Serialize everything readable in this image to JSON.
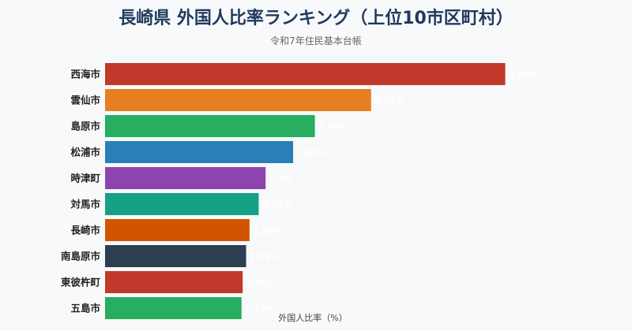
{
  "chart_data": {
    "type": "bar",
    "orientation": "horizontal",
    "title": "長崎県 外国人比率ランキング（上位10市区町村）",
    "subtitle": "令和7年住民基本台帳",
    "xlabel": "外国人比率（%）",
    "ylabel": "",
    "categories": [
      "西海市",
      "雲仙市",
      "島原市",
      "松浦市",
      "時津町",
      "対馬市",
      "長崎市",
      "南島原市",
      "東彼杵町",
      "五島市"
    ],
    "values": [
      3.49,
      2.32,
      1.83,
      1.64,
      1.4,
      1.34,
      1.26,
      1.23,
      1.2,
      1.19
    ],
    "value_labels": [
      "3.49%",
      "2.32%",
      "1.83%",
      "1.64%",
      "1.4%",
      "1.34%",
      "1.26%",
      "1.23%",
      "1.2%",
      "1.19%"
    ],
    "colors": [
      "#c0392b",
      "#e67e22",
      "#27ae60",
      "#2980b9",
      "#8e44ad",
      "#16a085",
      "#d35400",
      "#2c3e50",
      "#c0392b",
      "#27ae60"
    ],
    "xlim": [
      0,
      3.5
    ],
    "grid": false,
    "legend": "none"
  }
}
